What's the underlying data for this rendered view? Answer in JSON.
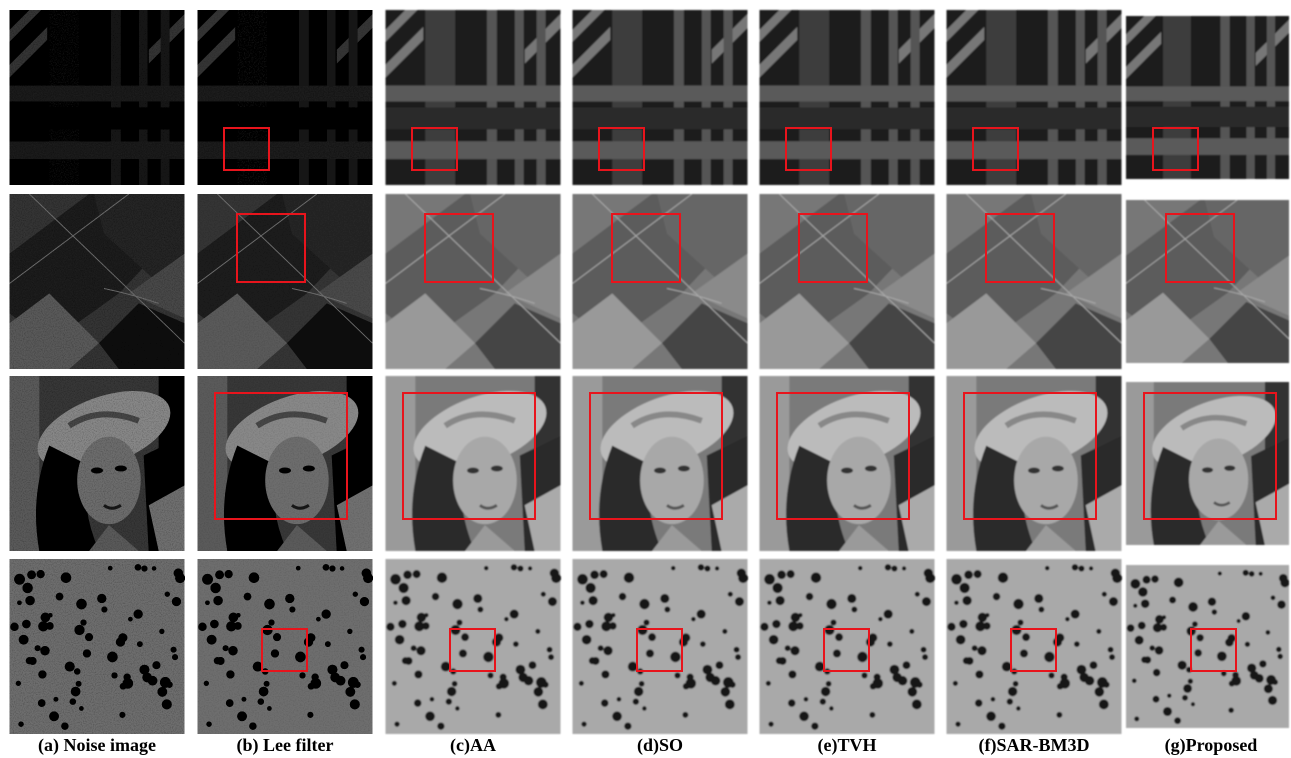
{
  "figure": {
    "captions": [
      "(a) Noise image",
      "(b) Lee filter",
      "(c)AA",
      "(d)SO",
      "(e)TVH",
      "(f)SAR-BM3D",
      "(g)Proposed"
    ]
  }
}
